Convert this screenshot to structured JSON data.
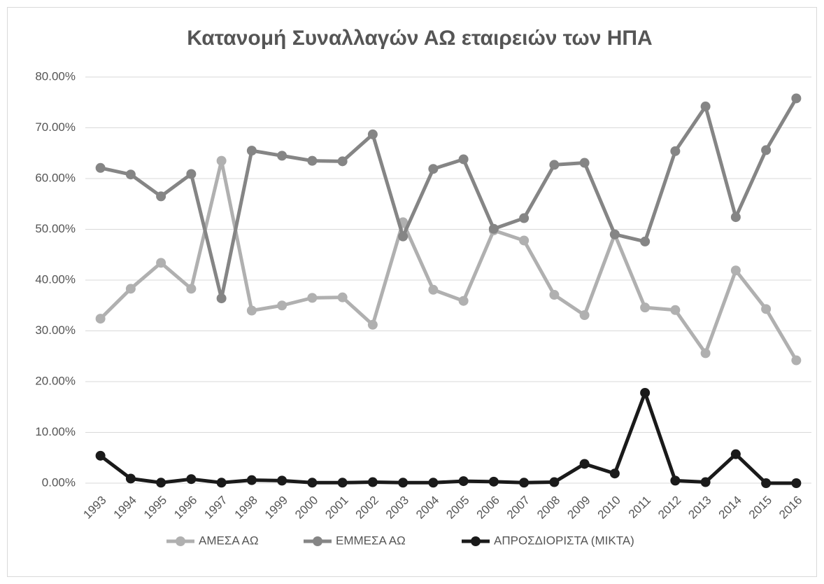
{
  "chart_data": {
    "type": "line",
    "title": "Κατανομή Συναλλαγών ΑΩ εταιρειών των ΗΠΑ",
    "categories": [
      "1993",
      "1994",
      "1995",
      "1996",
      "1997",
      "1998",
      "1999",
      "2000",
      "2001",
      "2002",
      "2003",
      "2004",
      "2005",
      "2006",
      "2007",
      "2008",
      "2009",
      "2010",
      "2011",
      "2012",
      "2013",
      "2014",
      "2015",
      "2016"
    ],
    "series": [
      {
        "name": "ΑΜΕΣΑ ΑΩ",
        "color": "#b0b0b0",
        "values": [
          32.4,
          38.3,
          43.4,
          38.3,
          63.5,
          34.0,
          35.0,
          36.5,
          36.6,
          31.2,
          51.4,
          38.1,
          35.9,
          49.8,
          47.8,
          37.1,
          33.1,
          49.0,
          34.6,
          34.1,
          25.6,
          41.9,
          34.3,
          24.2
        ]
      },
      {
        "name": "ΕΜΜΕΣΑ ΑΩ",
        "color": "#858585",
        "values": [
          62.1,
          60.8,
          56.5,
          60.9,
          36.4,
          65.5,
          64.5,
          63.5,
          63.4,
          68.7,
          48.6,
          61.9,
          63.8,
          50.1,
          52.2,
          62.7,
          63.1,
          49.0,
          47.6,
          65.4,
          74.2,
          52.4,
          65.6,
          75.8
        ]
      },
      {
        "name": "ΑΠΡΟΣΔΙΟΡΙΣΤΑ (ΜΙΚΤΑ)",
        "color": "#1a1a1a",
        "values": [
          5.4,
          0.9,
          0.1,
          0.8,
          0.1,
          0.6,
          0.5,
          0.1,
          0.1,
          0.2,
          0.1,
          0.1,
          0.4,
          0.3,
          0.1,
          0.2,
          3.8,
          1.9,
          17.8,
          0.5,
          0.2,
          5.7,
          0.0,
          0.0
        ]
      }
    ],
    "ylim": [
      0,
      80
    ],
    "yticks": [
      {
        "value": 0,
        "label": "0.00%"
      },
      {
        "value": 10,
        "label": "10.00%"
      },
      {
        "value": 20,
        "label": "20.00%"
      },
      {
        "value": 30,
        "label": "30.00%"
      },
      {
        "value": 40,
        "label": "40.00%"
      },
      {
        "value": 50,
        "label": "50.00%"
      },
      {
        "value": 60,
        "label": "60.00%"
      },
      {
        "value": 70,
        "label": "70.00%"
      },
      {
        "value": 80,
        "label": "80.00%"
      }
    ],
    "grid": true,
    "legend": "bottom"
  }
}
